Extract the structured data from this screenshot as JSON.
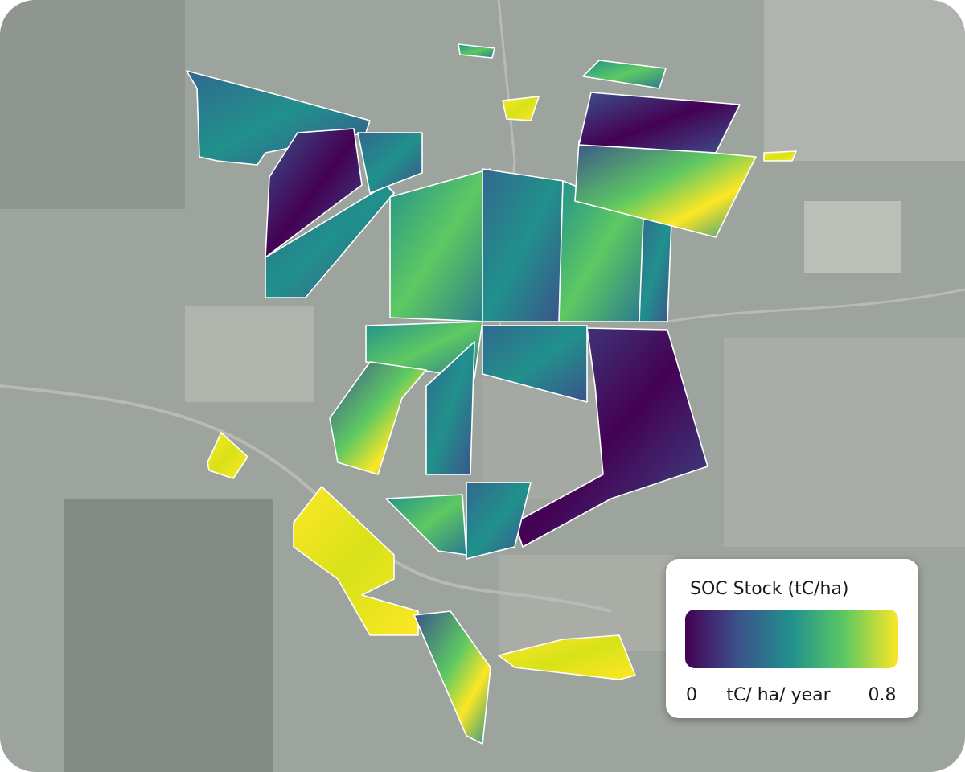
{
  "legend": {
    "title": "SOC Stock (tC/ha)",
    "min": 0,
    "unit": "tC/ ha/ year",
    "max": 0.8
  }
}
